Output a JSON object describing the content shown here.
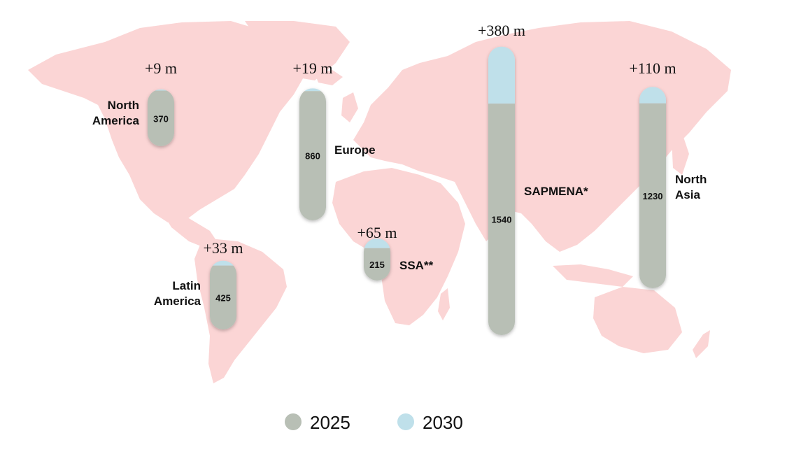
{
  "chart_data": {
    "type": "bar",
    "series": [
      {
        "name": "2025",
        "color": "#b8bfb5"
      },
      {
        "name": "2030",
        "color": "#bfe0ea"
      }
    ],
    "regions": [
      {
        "key": "north-america",
        "label_lines": [
          "North",
          "America"
        ],
        "value_2025": 370,
        "value_2030": 379,
        "increase_label": "+9 m",
        "increase": 9
      },
      {
        "key": "europe",
        "label_lines": [
          "Europe"
        ],
        "value_2025": 860,
        "value_2030": 879,
        "increase_label": "+19 m",
        "increase": 19
      },
      {
        "key": "latin-america",
        "label_lines": [
          "Latin",
          "America"
        ],
        "value_2025": 425,
        "value_2030": 458,
        "increase_label": "+33 m",
        "increase": 33
      },
      {
        "key": "ssa",
        "label_lines": [
          "SSA**"
        ],
        "value_2025": 215,
        "value_2030": 280,
        "increase_label": "+65 m",
        "increase": 65
      },
      {
        "key": "sapmena",
        "label_lines": [
          "SAPMENA*"
        ],
        "value_2025": 1540,
        "value_2030": 1920,
        "increase_label": "+380 m",
        "increase": 380
      },
      {
        "key": "north-asia",
        "label_lines": [
          "North",
          "Asia"
        ],
        "value_2025": 1230,
        "value_2030": 1340,
        "increase_label": "+110 m",
        "increase": 110
      }
    ]
  },
  "legend": {
    "items": [
      {
        "label": "2025",
        "color": "#b8bfb5"
      },
      {
        "label": "2030",
        "color": "#bfe0ea"
      }
    ]
  }
}
